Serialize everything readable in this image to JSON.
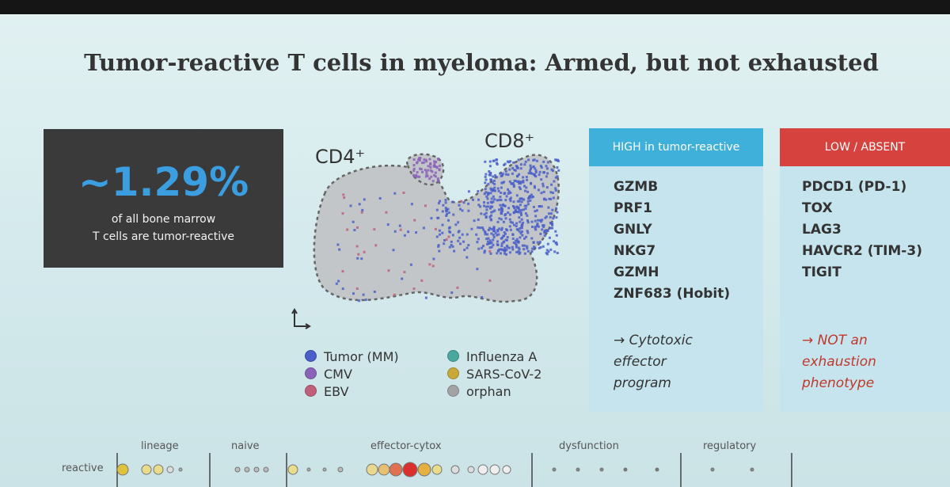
{
  "title": "Tumor-reactive T cells in myeloma: Armed, but not exhausted",
  "stat": {
    "value": "~1.29%",
    "lines": [
      "of all bone marrow",
      "T cells are tumor-reactive"
    ]
  },
  "umap": {
    "labels": [
      "CD4⁺",
      "CD8⁺"
    ]
  },
  "legend": [
    {
      "label": "Tumor (MM)",
      "color": "#4a5fc9"
    },
    {
      "label": "CMV",
      "color": "#8a62b8"
    },
    {
      "label": "EBV",
      "color": "#c0607a"
    },
    {
      "label": "Influenza A",
      "color": "#4aa8a0"
    },
    {
      "label": "SARS-CoV-2",
      "color": "#c9a93a"
    },
    {
      "label": "orphan",
      "color": "#a3a3a3"
    }
  ],
  "panels": [
    {
      "header": "HIGH in tumor-reactive",
      "header_color": "#3fb0d9",
      "items": [
        "GZMB",
        "PRF1",
        "GNLY",
        "NKG7",
        "GZMH",
        "ZNF683 (Hobit)"
      ],
      "note": [
        "→ Cytotoxic",
        "effector",
        "program"
      ],
      "note_color": "#333333"
    },
    {
      "header": "LOW / ABSENT",
      "header_color": "#d6423e",
      "items": [
        "PDCD1 (PD-1)",
        "TOX",
        "LAG3",
        "HAVCR2 (TIM-3)",
        "TIGIT"
      ],
      "note": [
        "→ NOT an",
        "exhaustion",
        "phenotype"
      ],
      "note_color": "#c0392b"
    }
  ],
  "bottom": {
    "row_label": "reactive",
    "columns": [
      "lineage",
      "naive",
      "effector-cytox",
      "dysfunction",
      "regulatory"
    ]
  }
}
